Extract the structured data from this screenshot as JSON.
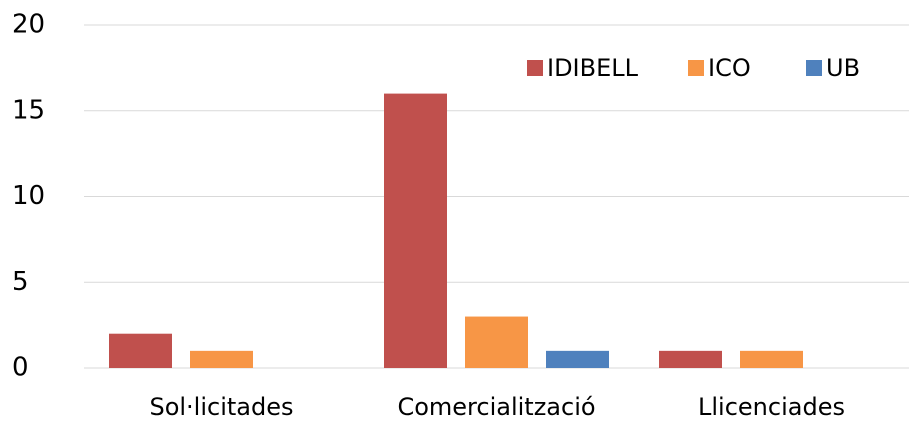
{
  "chart_data": {
    "type": "bar",
    "categories": [
      "Sol·licitades",
      "Comercialització",
      "Llicenciades"
    ],
    "series": [
      {
        "name": "IDIBELL",
        "color": "#c0504d",
        "values": [
          2,
          16,
          1
        ]
      },
      {
        "name": "ICO",
        "color": "#f79646",
        "values": [
          1,
          3,
          1
        ]
      },
      {
        "name": "UB",
        "color": "#4f81bd",
        "values": [
          0,
          1,
          0
        ]
      }
    ],
    "ylim": [
      0,
      20
    ],
    "yticks": [
      0,
      5,
      10,
      15,
      20
    ],
    "grid": true,
    "legend": "top-right"
  }
}
